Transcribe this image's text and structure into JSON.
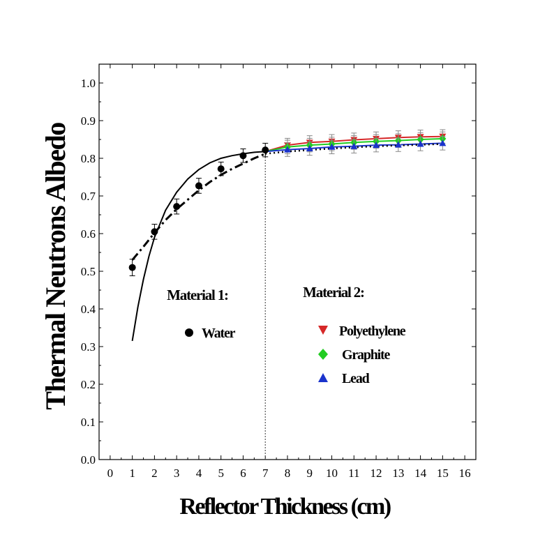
{
  "chart_data": {
    "type": "scatter",
    "xlabel": "Reflector Thickness (cm)",
    "ylabel": "Thermal Neutrons Albedo",
    "xlim": [
      -0.5,
      16.5
    ],
    "ylim": [
      0.0,
      1.05
    ],
    "x_ticks": [
      0,
      1,
      2,
      3,
      4,
      5,
      6,
      7,
      8,
      9,
      10,
      11,
      12,
      13,
      14,
      15,
      16
    ],
    "y_ticks": [
      0.0,
      0.1,
      0.2,
      0.3,
      0.4,
      0.5,
      0.6,
      0.7,
      0.8,
      0.9,
      1.0
    ],
    "y_tick_labels": [
      "0.0",
      "0.1",
      "0.2",
      "0.3",
      "0.4",
      "0.5",
      "0.6",
      "0.7",
      "0.8",
      "0.9",
      "1.0"
    ],
    "boundary_x": 7,
    "groups": {
      "material1_title": "Material 1:",
      "material2_title": "Material 2:"
    },
    "series": [
      {
        "name": "Water",
        "group": "material1",
        "marker": "circle",
        "color": "#000000",
        "x": [
          1,
          2,
          3,
          4,
          5,
          6,
          7
        ],
        "y": [
          0.51,
          0.605,
          0.672,
          0.727,
          0.772,
          0.807,
          0.822
        ],
        "err": [
          0.022,
          0.02,
          0.02,
          0.02,
          0.018,
          0.018,
          0.018
        ]
      },
      {
        "name": "Polyethylene",
        "group": "material2",
        "marker": "triangle-down",
        "color": "#d62828",
        "x": [
          8,
          9,
          10,
          11,
          12,
          13,
          14,
          15
        ],
        "y": [
          0.835,
          0.842,
          0.845,
          0.849,
          0.852,
          0.855,
          0.857,
          0.858
        ],
        "err": [
          0.018,
          0.018,
          0.018,
          0.018,
          0.018,
          0.018,
          0.018,
          0.018
        ]
      },
      {
        "name": "Graphite",
        "group": "material2",
        "marker": "diamond",
        "color": "#22cc22",
        "x": [
          8,
          9,
          10,
          11,
          12,
          13,
          14,
          15
        ],
        "y": [
          0.83,
          0.835,
          0.838,
          0.842,
          0.845,
          0.847,
          0.85,
          0.852
        ],
        "err": [
          0.018,
          0.018,
          0.018,
          0.018,
          0.018,
          0.018,
          0.018,
          0.018
        ]
      },
      {
        "name": "Lead",
        "group": "material2",
        "marker": "triangle-up",
        "color": "#1a33cc",
        "x": [
          8,
          9,
          10,
          11,
          12,
          13,
          14,
          15
        ],
        "y": [
          0.823,
          0.826,
          0.83,
          0.832,
          0.835,
          0.836,
          0.838,
          0.84
        ],
        "err": [
          0.018,
          0.018,
          0.018,
          0.018,
          0.018,
          0.018,
          0.018,
          0.018
        ]
      }
    ],
    "fit_curves": [
      {
        "name": "water-fit-solid",
        "style": "solid",
        "color": "#000000",
        "x": [
          1.0,
          1.25,
          1.5,
          1.75,
          2.0,
          2.5,
          3.0,
          3.5,
          4.0,
          4.5,
          5.0,
          5.5,
          6.0,
          6.5,
          7.0
        ],
        "y": [
          0.315,
          0.405,
          0.478,
          0.54,
          0.59,
          0.662,
          0.71,
          0.745,
          0.77,
          0.788,
          0.8,
          0.807,
          0.812,
          0.816,
          0.818
        ]
      },
      {
        "name": "water-fit-dashdot",
        "style": "dashdot",
        "color": "#000000",
        "x": [
          1.0,
          1.5,
          2.0,
          2.5,
          3.0,
          3.5,
          4.0,
          4.5,
          5.0,
          5.5,
          6.0,
          6.5,
          7.0
        ],
        "y": [
          0.53,
          0.565,
          0.602,
          0.636,
          0.665,
          0.69,
          0.715,
          0.737,
          0.756,
          0.772,
          0.786,
          0.8,
          0.812
        ]
      },
      {
        "name": "polyethylene-fit",
        "style": "solid",
        "color": "#d62828",
        "x": [
          7.0,
          8.0,
          9.0,
          10.0,
          11.0,
          12.0,
          13.0,
          14.0,
          15.0
        ],
        "y": [
          0.818,
          0.835,
          0.842,
          0.845,
          0.849,
          0.852,
          0.855,
          0.857,
          0.858
        ]
      },
      {
        "name": "graphite-fit",
        "style": "solid",
        "color": "#22cc22",
        "x": [
          7.0,
          8.0,
          9.0,
          10.0,
          11.0,
          12.0,
          13.0,
          14.0,
          15.0
        ],
        "y": [
          0.818,
          0.83,
          0.835,
          0.838,
          0.842,
          0.845,
          0.847,
          0.85,
          0.852
        ]
      },
      {
        "name": "lead-fit",
        "style": "solid",
        "color": "#1a33cc",
        "x": [
          7.0,
          8.0,
          9.0,
          10.0,
          11.0,
          12.0,
          13.0,
          14.0,
          15.0
        ],
        "y": [
          0.818,
          0.823,
          0.826,
          0.83,
          0.832,
          0.835,
          0.836,
          0.838,
          0.84
        ]
      },
      {
        "name": "material2-fit-dotted",
        "style": "dotted",
        "color": "#000000",
        "x": [
          7.0,
          8.0,
          9.0,
          10.0,
          11.0,
          12.0,
          13.0,
          14.0,
          15.0
        ],
        "y": [
          0.812,
          0.818,
          0.822,
          0.826,
          0.829,
          0.832,
          0.834,
          0.836,
          0.838
        ]
      }
    ]
  }
}
